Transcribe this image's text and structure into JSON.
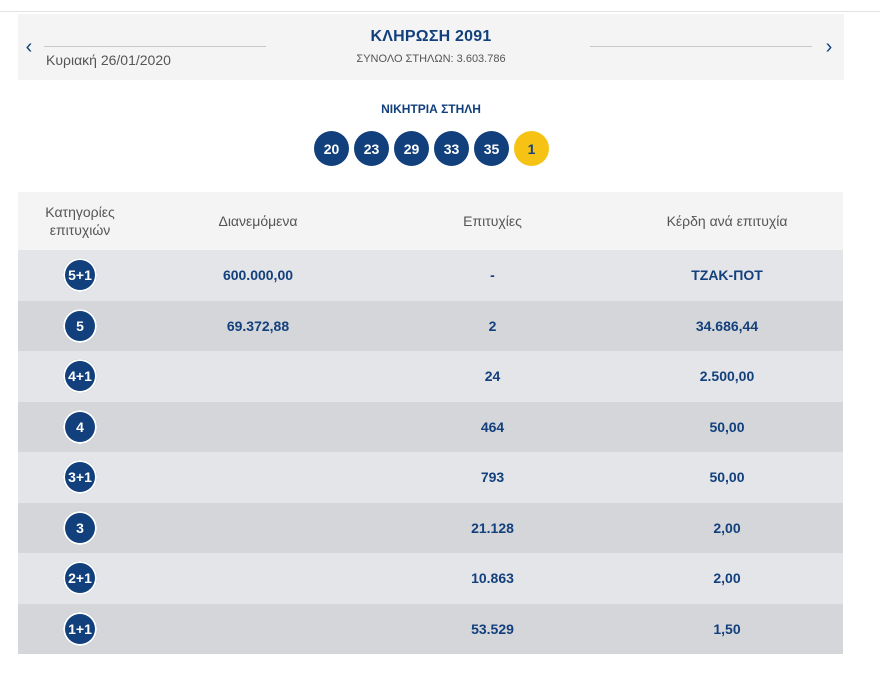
{
  "header": {
    "prev_icon": "chevron-left-icon",
    "next_icon": "chevron-right-icon",
    "prev_glyph": "‹",
    "next_glyph": "›",
    "date": "Κυριακή 26/01/2020",
    "draw_title": "ΚΛΗΡΩΣΗ 2091",
    "total_columns": "ΣΥΝΟΛΟ ΣΤΗΛΩΝ: 3.603.786"
  },
  "winning": {
    "title": "ΝΙΚΗΤΡΙΑ ΣΤΗΛΗ",
    "numbers": [
      "20",
      "23",
      "29",
      "33",
      "35"
    ],
    "joker": "1"
  },
  "table": {
    "headers": {
      "categories": "Κατηγορίες επιτυχιών",
      "distributed": "Διανεμόμενα",
      "winners": "Επιτυχίες",
      "prize": "Κέρδη ανά επιτυχία"
    },
    "rows": [
      {
        "category": "5+1",
        "distributed": "600.000,00",
        "winners": "-",
        "prize": "ΤΖΑΚ-ΠΟΤ"
      },
      {
        "category": "5",
        "distributed": "69.372,88",
        "winners": "2",
        "prize": "34.686,44"
      },
      {
        "category": "4+1",
        "distributed": "",
        "winners": "24",
        "prize": "2.500,00"
      },
      {
        "category": "4",
        "distributed": "",
        "winners": "464",
        "prize": "50,00"
      },
      {
        "category": "3+1",
        "distributed": "",
        "winners": "793",
        "prize": "50,00"
      },
      {
        "category": "3",
        "distributed": "",
        "winners": "21.128",
        "prize": "2,00"
      },
      {
        "category": "2+1",
        "distributed": "",
        "winners": "10.863",
        "prize": "2,00"
      },
      {
        "category": "1+1",
        "distributed": "",
        "winners": "53.529",
        "prize": "1,50"
      }
    ]
  },
  "colors": {
    "brand_blue": "#12407d",
    "joker_yellow": "#f6c315"
  }
}
